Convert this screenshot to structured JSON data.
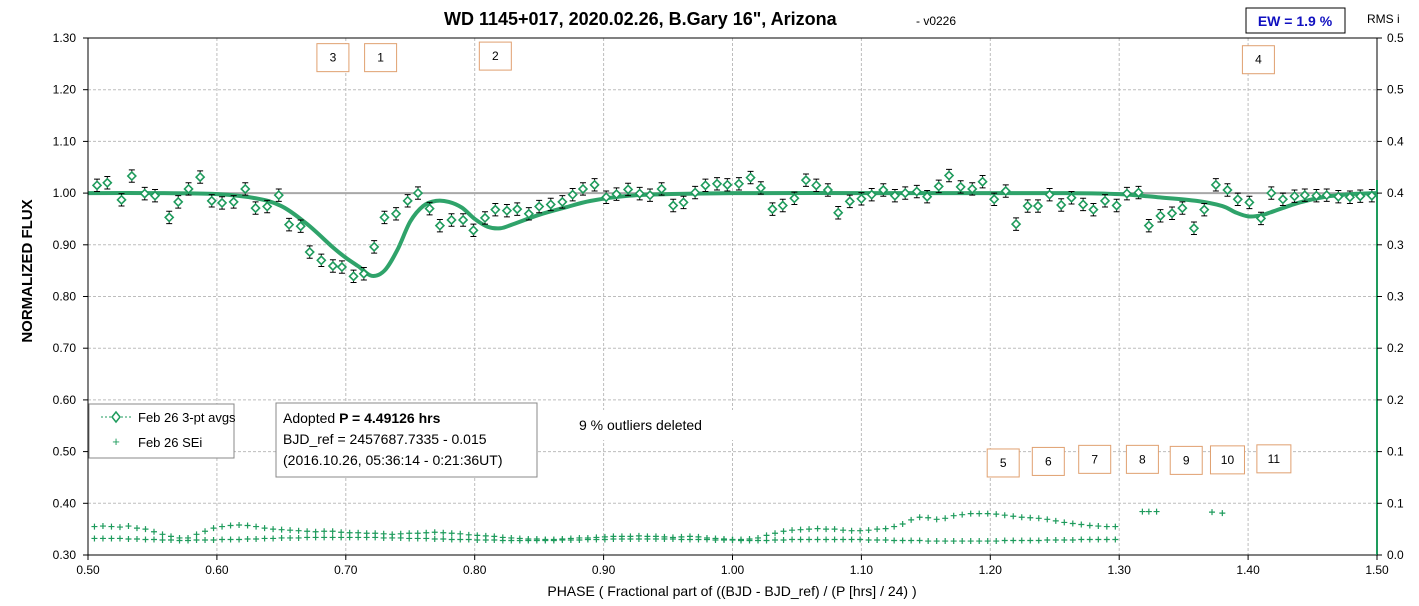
{
  "chart_data": {
    "type": "scatter",
    "title": "WD 1145+017, 2020.02.26, B.Gary 16\", Arizona",
    "title_version": "- v0226",
    "ew_label": "EW = 1.9 %",
    "right_axis_label": "RMS i",
    "xlabel": "PHASE ( Fractional part of ((BJD - BJD_ref) / (P [hrs] / 24) )",
    "ylabel": "NORMALIZED FLUX",
    "xlim": [
      0.5,
      1.5
    ],
    "ylim": [
      0.3,
      1.3
    ],
    "y2lim": [
      0.0,
      0.5
    ],
    "x_ticks": [
      "0.50",
      "0.60",
      "0.70",
      "0.80",
      "0.90",
      "1.00",
      "1.10",
      "1.20",
      "1.30",
      "1.40",
      "1.50"
    ],
    "y_ticks": [
      "0.30",
      "0.40",
      "0.50",
      "0.60",
      "0.70",
      "0.80",
      "0.90",
      "1.00",
      "1.10",
      "1.20",
      "1.30"
    ],
    "y2_ticks": [
      "0.0",
      "0.1",
      "0.1",
      "0.2",
      "0.2",
      "0.3",
      "0.3",
      "0.4",
      "0.4",
      "0.5",
      "0.5"
    ],
    "grid": true,
    "reference_line": 1.0,
    "legend": {
      "placement": "bottom-left",
      "entries": [
        "Feb 26 3-pt avgs",
        "Feb 26 SEi"
      ]
    },
    "info_box": {
      "line1_prefix": "Adopted ",
      "line1_bold": "P = 4.49126 hrs",
      "line2": "BJD_ref = 2457687.7335 - 0.015",
      "line3": "(2016.10.26, 05:36:14 - 0:21:36UT)"
    },
    "outliers_note": "9 % outliers deleted",
    "dip_labels": [
      {
        "label": "3",
        "x": 0.69,
        "y": 1.262
      },
      {
        "label": "1",
        "x": 0.727,
        "y": 1.262
      },
      {
        "label": "2",
        "x": 0.816,
        "y": 1.265
      },
      {
        "label": "4",
        "x": 1.408,
        "y": 1.258
      },
      {
        "label": "5",
        "x": 1.21,
        "y": 0.478
      },
      {
        "label": "6",
        "x": 1.245,
        "y": 0.481
      },
      {
        "label": "7",
        "x": 1.281,
        "y": 0.485
      },
      {
        "label": "8",
        "x": 1.318,
        "y": 0.485
      },
      {
        "label": "9",
        "x": 1.352,
        "y": 0.483
      },
      {
        "label": "10",
        "x": 1.384,
        "y": 0.484
      },
      {
        "label": "11",
        "x": 1.42,
        "y": 0.486
      }
    ],
    "series": [
      {
        "name": "Feb 26 3-pt avgs",
        "x": [
          0.507,
          0.515,
          0.526,
          0.534,
          0.544,
          0.552,
          0.563,
          0.57,
          0.578,
          0.587,
          0.596,
          0.604,
          0.613,
          0.622,
          0.63,
          0.639,
          0.648,
          0.656,
          0.665,
          0.672,
          0.681,
          0.69,
          0.697,
          0.706,
          0.714,
          0.722,
          0.73,
          0.739,
          0.748,
          0.756,
          0.765,
          0.773,
          0.782,
          0.791,
          0.799,
          0.808,
          0.816,
          0.825,
          0.833,
          0.842,
          0.85,
          0.859,
          0.868,
          0.876,
          0.884,
          0.893,
          0.902,
          0.91,
          0.919,
          0.928,
          0.936,
          0.945,
          0.954,
          0.962,
          0.971,
          0.979,
          0.988,
          0.996,
          1.005,
          1.014,
          1.022,
          1.031,
          1.039,
          1.048,
          1.057,
          1.065,
          1.074,
          1.082,
          1.091,
          1.1,
          1.108,
          1.117,
          1.126,
          1.134,
          1.143,
          1.151,
          1.16,
          1.168,
          1.177,
          1.186,
          1.194,
          1.203,
          1.212,
          1.22,
          1.229,
          1.237,
          1.246,
          1.255,
          1.263,
          1.272,
          1.28,
          1.289,
          1.298,
          1.306,
          1.315,
          1.323,
          1.332,
          1.341,
          1.349,
          1.358,
          1.366,
          1.375,
          1.384,
          1.392,
          1.401,
          1.41,
          1.418,
          1.427,
          1.436,
          1.444,
          1.453,
          1.461,
          1.47,
          1.479,
          1.487,
          1.496
        ],
        "y": [
          1.015,
          1.02,
          0.987,
          1.033,
          0.999,
          0.995,
          0.953,
          0.983,
          1.008,
          1.031,
          0.985,
          0.981,
          0.983,
          1.008,
          0.971,
          0.974,
          0.996,
          0.939,
          0.936,
          0.886,
          0.87,
          0.859,
          0.857,
          0.839,
          0.844,
          0.896,
          0.953,
          0.96,
          0.985,
          1.0,
          0.97,
          0.937,
          0.948,
          0.948,
          0.928,
          0.952,
          0.968,
          0.966,
          0.969,
          0.96,
          0.974,
          0.978,
          0.983,
          0.997,
          1.008,
          1.016,
          0.992,
          0.998,
          1.007,
          0.999,
          0.996,
          1.008,
          0.976,
          0.982,
          1.001,
          1.015,
          1.018,
          1.016,
          1.018,
          1.03,
          1.01,
          0.969,
          0.976,
          0.99,
          1.025,
          1.015,
          1.006,
          0.962,
          0.984,
          0.989,
          0.997,
          1.006,
          0.995,
          1.0,
          1.003,
          0.993,
          1.013,
          1.034,
          1.012,
          1.008,
          1.022,
          0.988,
          1.004,
          0.94,
          0.975,
          0.975,
          0.997,
          0.977,
          0.991,
          0.978,
          0.968,
          0.985,
          0.976,
          0.999,
          1.001,
          0.937,
          0.956,
          0.961,
          0.971,
          0.932,
          0.968,
          1.016,
          1.006,
          0.988,
          0.982,
          0.951,
          1.0,
          0.988,
          0.994,
          0.996,
          0.995,
          0.996,
          0.993,
          0.992,
          0.994,
          0.995
        ],
        "err": 0.012
      },
      {
        "name": "Feb 26 SEi",
        "x_start": 0.505,
        "x_step": 0.0066,
        "band_upper": [
          0.355,
          0.356,
          0.355,
          0.354,
          0.356,
          0.352,
          0.35,
          0.345,
          0.34,
          0.336,
          0.333,
          0.333,
          0.34,
          0.346,
          0.352,
          0.355,
          0.357,
          0.358,
          0.357,
          0.355,
          0.352,
          0.35,
          0.349,
          0.348,
          0.347,
          0.346,
          0.345,
          0.346,
          0.346,
          0.344,
          0.343,
          0.343,
          0.342,
          0.342,
          0.341,
          0.34,
          0.341,
          0.342,
          0.342,
          0.343,
          0.344,
          0.343,
          0.342,
          0.341,
          0.339,
          0.338,
          0.337,
          0.336,
          0.334,
          0.333,
          0.332,
          0.331,
          0.331,
          0.33,
          0.33,
          0.331,
          0.332,
          0.333,
          0.333,
          0.334,
          0.335,
          0.336,
          0.336,
          0.336,
          0.337,
          0.336,
          0.336,
          0.335,
          0.334,
          0.335,
          0.336,
          0.335,
          0.333,
          0.332,
          0.331,
          0.33,
          0.33,
          0.331,
          0.333,
          0.338,
          0.342,
          0.346,
          0.348,
          0.349,
          0.35,
          0.351,
          0.35,
          0.35,
          0.348,
          0.347,
          0.347,
          0.348,
          0.35,
          0.351,
          0.355,
          0.36,
          0.368,
          0.373,
          0.372,
          0.369,
          0.371,
          0.376,
          0.378,
          0.38,
          0.38,
          0.38,
          0.379,
          0.377,
          0.375,
          0.373,
          0.372,
          0.371,
          0.369,
          0.366,
          0.363,
          0.361,
          0.359,
          0.357,
          0.356,
          0.355,
          0.355
        ],
        "band_lower": [
          0.332,
          0.332,
          0.332,
          0.332,
          0.331,
          0.331,
          0.33,
          0.33,
          0.329,
          0.329,
          0.328,
          0.328,
          0.329,
          0.329,
          0.329,
          0.33,
          0.33,
          0.33,
          0.331,
          0.331,
          0.332,
          0.332,
          0.333,
          0.333,
          0.333,
          0.334,
          0.334,
          0.334,
          0.334,
          0.334,
          0.334,
          0.334,
          0.334,
          0.334,
          0.333,
          0.333,
          0.333,
          0.332,
          0.332,
          0.332,
          0.331,
          0.331,
          0.33,
          0.33,
          0.33,
          0.329,
          0.329,
          0.329,
          0.328,
          0.328,
          0.328,
          0.328,
          0.328,
          0.328,
          0.328,
          0.329,
          0.329,
          0.329,
          0.33,
          0.33,
          0.33,
          0.331,
          0.331,
          0.331,
          0.331,
          0.331,
          0.331,
          0.331,
          0.331,
          0.33,
          0.33,
          0.33,
          0.33,
          0.329,
          0.329,
          0.329,
          0.328,
          0.328,
          0.328,
          0.328,
          0.329,
          0.329,
          0.33,
          0.33,
          0.33,
          0.33,
          0.33,
          0.33,
          0.33,
          0.33,
          0.33,
          0.329,
          0.329,
          0.329,
          0.328,
          0.328,
          0.328,
          0.328,
          0.327,
          0.327,
          0.327,
          0.327,
          0.327,
          0.327,
          0.327,
          0.327,
          0.327,
          0.328,
          0.328,
          0.328,
          0.328,
          0.328,
          0.329,
          0.329,
          0.329,
          0.329,
          0.33,
          0.33,
          0.33,
          0.33,
          0.33
        ],
        "outliers": [
          [
            1.318,
            0.384
          ],
          [
            1.323,
            0.384
          ],
          [
            1.329,
            0.384
          ],
          [
            1.372,
            0.383
          ],
          [
            1.38,
            0.381
          ]
        ]
      },
      {
        "name": "model fit",
        "x": [
          0.5,
          0.55,
          0.6,
          0.63,
          0.65,
          0.67,
          0.69,
          0.7,
          0.71,
          0.72,
          0.73,
          0.74,
          0.75,
          0.76,
          0.77,
          0.78,
          0.79,
          0.8,
          0.81,
          0.82,
          0.83,
          0.85,
          0.87,
          0.89,
          0.92,
          0.95,
          1.0,
          1.1,
          1.2,
          1.26,
          1.3,
          1.33,
          1.36,
          1.38,
          1.39,
          1.4,
          1.41,
          1.42,
          1.44,
          1.46,
          1.48,
          1.5
        ],
        "y": [
          1.0,
          1.0,
          0.998,
          0.99,
          0.975,
          0.94,
          0.895,
          0.875,
          0.858,
          0.84,
          0.85,
          0.89,
          0.945,
          0.975,
          0.985,
          0.983,
          0.972,
          0.95,
          0.935,
          0.932,
          0.94,
          0.958,
          0.972,
          0.985,
          0.995,
          0.998,
          1.0,
          1.0,
          1.0,
          1.0,
          0.998,
          0.992,
          0.985,
          0.975,
          0.963,
          0.955,
          0.957,
          0.965,
          0.982,
          0.993,
          0.998,
          1.0
        ]
      }
    ],
    "colors": {
      "series": "#1e9b5c",
      "fit": "#2fa36a",
      "errorbar": "#000000",
      "grid": "#bdbdbd",
      "ref_line": "#a8a8a8",
      "ew_text": "#1010c0",
      "label_box": "#e0a070"
    }
  }
}
